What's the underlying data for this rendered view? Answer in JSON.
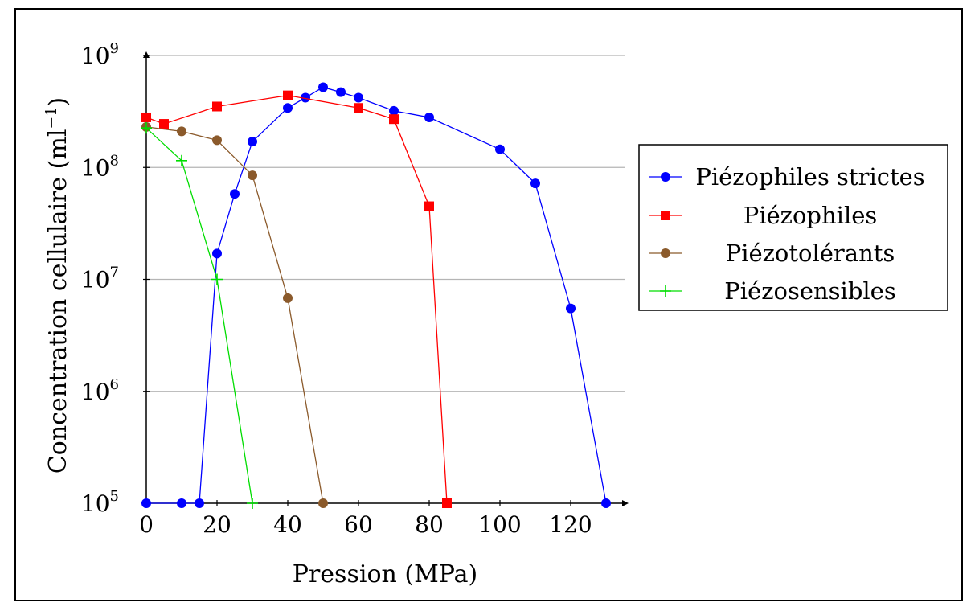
{
  "chart_data": {
    "type": "line",
    "title": "",
    "xlabel": "Pression (MPa)",
    "ylabel_main": "Concentration cellulaire (ml",
    "ylabel_exp": "−1",
    "ylabel_close": ")",
    "xlim": [
      0,
      130
    ],
    "ylim": [
      100000,
      1000000000
    ],
    "yscale": "log",
    "x_ticks": [
      "0",
      "20",
      "40",
      "60",
      "80",
      "100",
      "120"
    ],
    "y_ticks": [
      {
        "base": "10",
        "exp": "5",
        "value": 100000
      },
      {
        "base": "10",
        "exp": "6",
        "value": 1000000
      },
      {
        "base": "10",
        "exp": "7",
        "value": 10000000
      },
      {
        "base": "10",
        "exp": "8",
        "value": 100000000
      },
      {
        "base": "10",
        "exp": "9",
        "value": 1000000000
      }
    ],
    "grid": "horizontal",
    "legend_position": "right",
    "series": [
      {
        "name": "Piézophiles strictes",
        "color": "#0000ff",
        "marker": "circle",
        "points": [
          [
            0,
            100000
          ],
          [
            10,
            100000
          ],
          [
            15,
            100000
          ],
          [
            20,
            17000000
          ],
          [
            25,
            58000000
          ],
          [
            30,
            170000000
          ],
          [
            40,
            340000000
          ],
          [
            45,
            420000000
          ],
          [
            50,
            520000000
          ],
          [
            55,
            470000000
          ],
          [
            60,
            420000000
          ],
          [
            70,
            320000000
          ],
          [
            80,
            280000000
          ],
          [
            100,
            145000000
          ],
          [
            110,
            72000000
          ],
          [
            120,
            5500000
          ],
          [
            130,
            100000
          ]
        ]
      },
      {
        "name": "Piézophiles",
        "color": "#ff0000",
        "marker": "square",
        "points": [
          [
            0,
            280000000
          ],
          [
            5,
            245000000
          ],
          [
            20,
            350000000
          ],
          [
            40,
            440000000
          ],
          [
            60,
            340000000
          ],
          [
            70,
            270000000
          ],
          [
            80,
            45000000
          ],
          [
            85,
            100000
          ]
        ]
      },
      {
        "name": "Piézotolérants",
        "color": "#8b5a2b",
        "marker": "circle",
        "points": [
          [
            0,
            230000000
          ],
          [
            10,
            210000000
          ],
          [
            20,
            175000000
          ],
          [
            30,
            85000000
          ],
          [
            40,
            6800000
          ],
          [
            50,
            100000
          ]
        ]
      },
      {
        "name": "Piézosensibles",
        "color": "#00dd00",
        "marker": "plus",
        "points": [
          [
            0,
            225000000
          ],
          [
            10,
            115000000
          ],
          [
            20,
            10000000
          ],
          [
            30,
            100000
          ]
        ]
      }
    ]
  }
}
